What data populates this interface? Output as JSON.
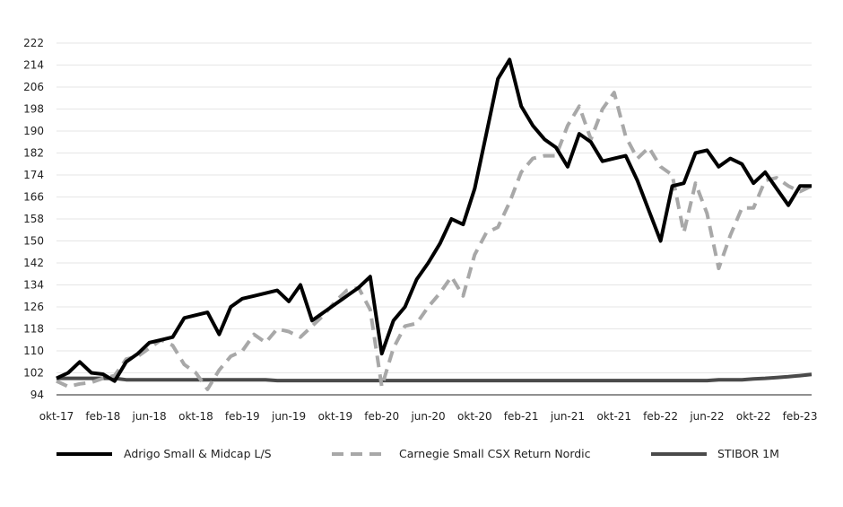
{
  "chart_data": {
    "type": "line",
    "title": "",
    "xlabel": "",
    "ylabel": "",
    "ylim": [
      94,
      222
    ],
    "y_ticks": [
      94,
      102,
      110,
      118,
      126,
      134,
      142,
      150,
      158,
      166,
      174,
      182,
      190,
      198,
      206,
      214,
      222
    ],
    "x_ticks": [
      "okt-17",
      "feb-18",
      "jun-18",
      "okt-18",
      "feb-19",
      "jun-19",
      "okt-19",
      "feb-20",
      "jun-20",
      "okt-20",
      "feb-21",
      "jun-21",
      "okt-21",
      "feb-22",
      "jun-22",
      "okt-22",
      "feb-23"
    ],
    "grid": "horizontal",
    "legend_position": "bottom",
    "x": [
      "okt-17",
      "nov-17",
      "dec-17",
      "jan-18",
      "feb-18",
      "mar-18",
      "apr-18",
      "maj-18",
      "jun-18",
      "jul-18",
      "aug-18",
      "sep-18",
      "okt-18",
      "nov-18",
      "dec-18",
      "jan-19",
      "feb-19",
      "mar-19",
      "apr-19",
      "maj-19",
      "jun-19",
      "jul-19",
      "aug-19",
      "sep-19",
      "okt-19",
      "nov-19",
      "dec-19",
      "jan-20",
      "feb-20",
      "mar-20",
      "apr-20",
      "maj-20",
      "jun-20",
      "jul-20",
      "aug-20",
      "sep-20",
      "okt-20",
      "nov-20",
      "dec-20",
      "jan-21",
      "feb-21",
      "mar-21",
      "apr-21",
      "maj-21",
      "jun-21",
      "jul-21",
      "aug-21",
      "sep-21",
      "okt-21",
      "nov-21",
      "dec-21",
      "jan-22",
      "feb-22",
      "mar-22",
      "apr-22",
      "maj-22",
      "jun-22",
      "jul-22",
      "aug-22",
      "sep-22",
      "okt-22",
      "nov-22",
      "dec-22",
      "jan-23",
      "feb-23",
      "mar-23"
    ],
    "series": [
      {
        "name": "Adrigo Small & Midcap L/S",
        "color": "#000000",
        "dash": "solid",
        "values": [
          100,
          102,
          106,
          102,
          101.5,
          99,
          106,
          109,
          113,
          114,
          115,
          122,
          123,
          124,
          116,
          126,
          129,
          130,
          131,
          132,
          128,
          134,
          121,
          124,
          127,
          130,
          133,
          137,
          109,
          121,
          126,
          136,
          142,
          149,
          158,
          156,
          169,
          189,
          209,
          216,
          199,
          192,
          187,
          184,
          177,
          189,
          186,
          179,
          180,
          181,
          172,
          161,
          150,
          170,
          171,
          182,
          183,
          177,
          180,
          178,
          171,
          175,
          169,
          163,
          170,
          170
        ],
        "tail_note": ""
      },
      {
        "name": "Carnegie Small CSX Return Nordic",
        "color": "#a8a8a8",
        "dash": "dashed",
        "values": [
          99,
          97,
          98,
          98.5,
          100,
          101,
          107,
          108,
          111,
          114,
          112,
          105,
          102,
          96,
          103,
          108,
          110,
          116,
          113,
          118,
          117,
          115,
          119,
          123,
          128,
          132,
          133,
          125,
          97,
          111,
          119,
          120,
          126,
          131,
          137,
          130,
          145,
          153,
          155,
          164,
          175,
          180,
          181,
          181,
          192,
          199,
          187,
          198,
          204,
          188,
          180,
          184,
          177,
          174,
          153,
          171,
          160,
          140,
          152,
          162,
          162,
          172,
          173,
          170,
          168,
          170
        ],
        "tail_note": ""
      },
      {
        "name": "STIBOR 1M",
        "color": "#4a4a4a",
        "dash": "solid",
        "values": [
          100,
          100,
          100,
          100,
          100,
          100,
          99.5,
          99.5,
          99.5,
          99.5,
          99.5,
          99.5,
          99.5,
          99.5,
          99.5,
          99.5,
          99.5,
          99.5,
          99.5,
          99.2,
          99.2,
          99.2,
          99.2,
          99.2,
          99.2,
          99.2,
          99.2,
          99.2,
          99.2,
          99.2,
          99.2,
          99.2,
          99.2,
          99.2,
          99.2,
          99.2,
          99.2,
          99.2,
          99.2,
          99.2,
          99.2,
          99.2,
          99.2,
          99.2,
          99.2,
          99.2,
          99.2,
          99.2,
          99.2,
          99.2,
          99.2,
          99.2,
          99.2,
          99.2,
          99.2,
          99.2,
          99.2,
          99.5,
          99.5,
          99.5,
          99.8,
          100,
          100.3,
          100.6,
          101,
          101.4
        ]
      }
    ]
  }
}
